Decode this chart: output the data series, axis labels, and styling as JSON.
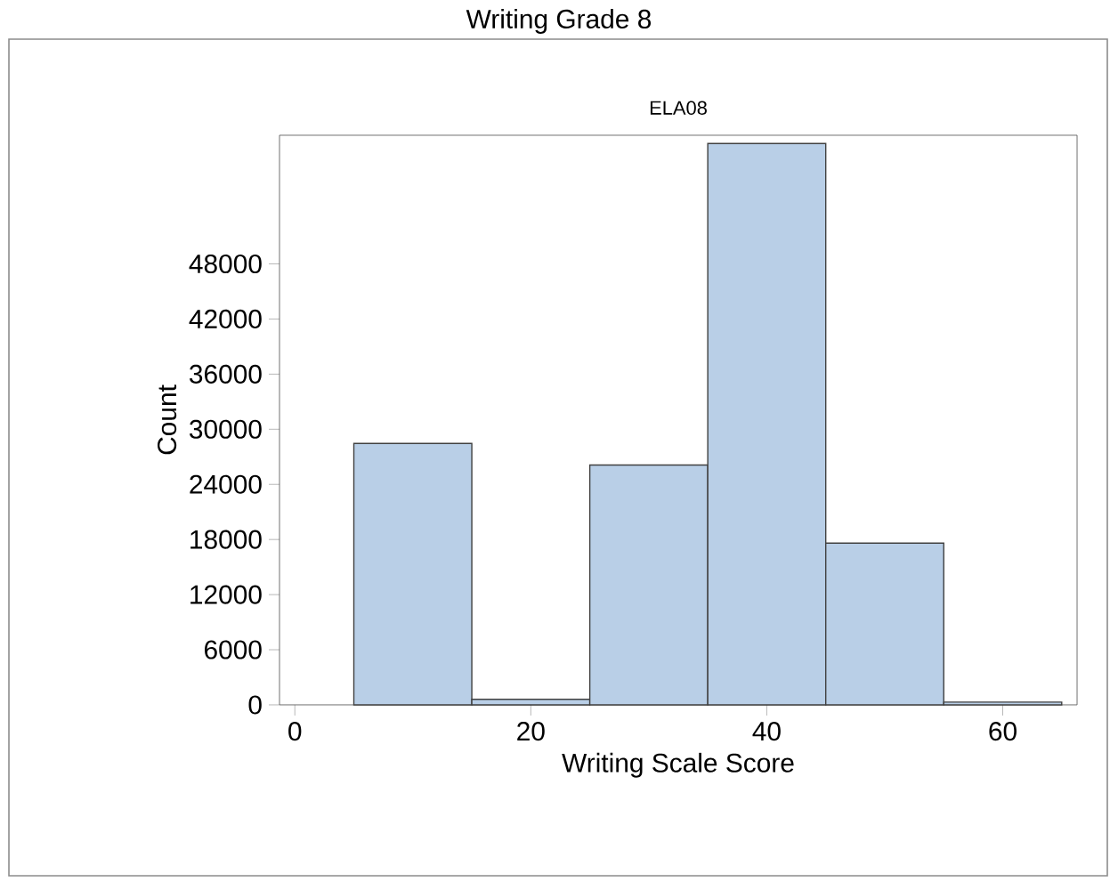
{
  "chart_data": {
    "type": "histogram",
    "title": "Writing Grade 8",
    "subtitle": "ELA08",
    "xlabel": "Writing Scale Score",
    "ylabel": "Count",
    "bins": [
      5,
      15,
      25,
      35,
      45,
      55,
      65
    ],
    "values": [
      28450,
      600,
      26100,
      61100,
      17600,
      300
    ],
    "color": "#b9cfe7",
    "xlim": [
      -1.3,
      66.3
    ],
    "ylim": [
      0,
      62000
    ],
    "xticks": [
      0,
      20,
      40,
      60
    ],
    "yticks": [
      0,
      6000,
      12000,
      18000,
      24000,
      30000,
      36000,
      42000,
      48000
    ],
    "grid": false
  }
}
